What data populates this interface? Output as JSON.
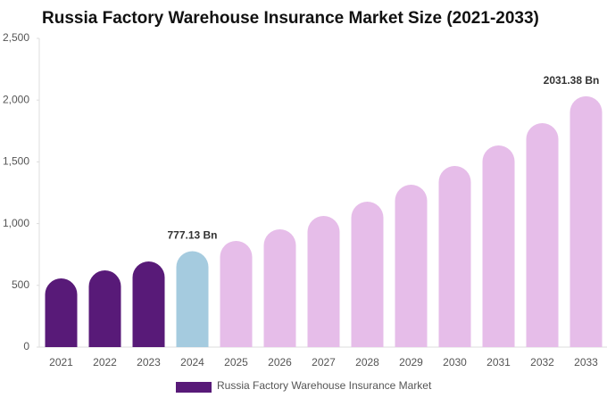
{
  "chart_data": {
    "type": "bar",
    "title": "Russia Factory Warehouse Insurance Market Size (2021-2033)",
    "categories": [
      "2021",
      "2022",
      "2023",
      "2024",
      "2025",
      "2026",
      "2027",
      "2028",
      "2029",
      "2030",
      "2031",
      "2032",
      "2033"
    ],
    "series": [
      {
        "name": "Russia Factory Warehouse Insurance Market",
        "color": "#581a78",
        "values": [
          556,
          621,
          694,
          777.13,
          860,
          954,
          1062,
          1178,
          1315,
          1467,
          1633,
          1814,
          2031.38
        ],
        "colors": [
          "#581a78",
          "#581a78",
          "#581a78",
          "#a5cbdf",
          "#e6bde9",
          "#e6bde9",
          "#e6bde9",
          "#e6bde9",
          "#e6bde9",
          "#e6bde9",
          "#e6bde9",
          "#e6bde9",
          "#e6bde9"
        ],
        "value_labels": [
          null,
          null,
          null,
          "777.13 Bn",
          null,
          null,
          null,
          null,
          null,
          null,
          null,
          null,
          "2031.38 Bn"
        ]
      }
    ],
    "ylim": [
      0,
      2500
    ],
    "yticks": [
      0,
      500,
      {
        "value": 1000,
        "label": "1,000"
      },
      {
        "value": 1500,
        "label": "1,500"
      },
      {
        "value": 2000,
        "label": "2,000"
      },
      {
        "value": 2500,
        "label": "2,500"
      }
    ],
    "grid": false
  }
}
